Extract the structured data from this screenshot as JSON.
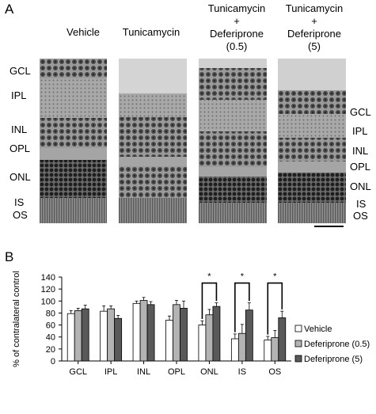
{
  "panel_a": {
    "label": "A",
    "columns": [
      {
        "lines": [
          "Vehicle"
        ]
      },
      {
        "lines": [
          "Tunicamycin"
        ]
      },
      {
        "lines": [
          "Tunicamycin",
          "+",
          "Deferiprone",
          "(0.5)"
        ]
      },
      {
        "lines": [
          "Tunicamycin",
          "+",
          "Deferiprone",
          "(5)"
        ]
      }
    ],
    "left_layers": [
      "GCL",
      "IPL",
      "INL",
      "OPL",
      "ONL",
      "IS",
      "OS"
    ],
    "right_layers": [
      "GCL",
      "IPL",
      "INL",
      "OPL",
      "ONL",
      "IS",
      "OS"
    ],
    "colors": {
      "tissue_dark": "#2a2a2a",
      "tissue_mid": "#7a7a7a",
      "tissue_light": "#bdbdbd",
      "background": "#d9d9d9"
    }
  },
  "panel_b": {
    "label": "B"
  },
  "chart_data": {
    "type": "bar",
    "ylabel": "% of contralateral control",
    "xlabel": "",
    "ylim": [
      0,
      140
    ],
    "yticks": [
      0,
      20,
      40,
      60,
      80,
      100,
      120,
      140
    ],
    "categories": [
      "GCL",
      "IPL",
      "INL",
      "OPL",
      "ONL",
      "IS",
      "OS"
    ],
    "series": [
      {
        "name": "Vehicle",
        "color": "#ffffff",
        "values": [
          79,
          83,
          96,
          68,
          60,
          37,
          35
        ],
        "errors": [
          5,
          9,
          4,
          7,
          7,
          8,
          6
        ]
      },
      {
        "name": "Deferiprone (0.5)",
        "color": "#b3b3b3",
        "values": [
          84,
          87,
          101,
          94,
          77,
          46,
          39
        ],
        "errors": [
          4,
          5,
          5,
          7,
          9,
          15,
          12
        ]
      },
      {
        "name": "Deferiprone (5)",
        "color": "#595959",
        "values": [
          87,
          71,
          94,
          88,
          91,
          85,
          72
        ],
        "errors": [
          6,
          5,
          5,
          12,
          6,
          12,
          11
        ]
      }
    ],
    "significance": [
      {
        "category": "ONL",
        "label": "*"
      },
      {
        "category": "IS",
        "label": "*"
      },
      {
        "category": "OS",
        "label": "*"
      }
    ],
    "legend_position": "right"
  }
}
